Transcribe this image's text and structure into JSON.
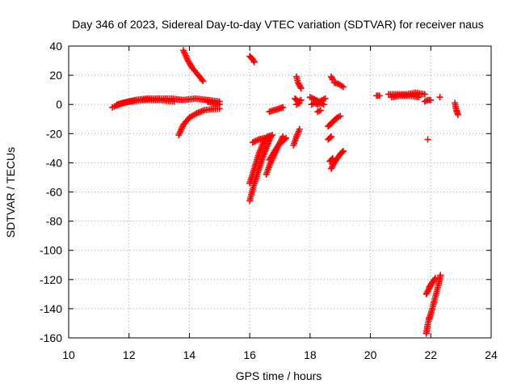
{
  "chart_data": {
    "type": "scatter",
    "title": "Day 346 of 2023, Sidereal Day-to-day VTEC variation (SDTVAR) for receiver naus",
    "xlabel": "GPS time / hours",
    "ylabel": "SDTVAR / TECUs",
    "xlim": [
      10,
      24
    ],
    "ylim": [
      -160,
      40
    ],
    "xticks": [
      10,
      12,
      14,
      16,
      18,
      20,
      22,
      24
    ],
    "yticks": [
      -160,
      -140,
      -120,
      -100,
      -80,
      -60,
      -40,
      -20,
      0,
      20,
      40
    ],
    "grid": true,
    "marker": "plus",
    "color": "#ff0000",
    "segments": [
      {
        "x": [
          11.45,
          11.8,
          12.2,
          12.6,
          13.0,
          13.4,
          13.8,
          14.2,
          14.6,
          15.0
        ],
        "y": [
          -2,
          1,
          3,
          4,
          4,
          4,
          3,
          4,
          3,
          2
        ]
      },
      {
        "x": [
          11.6,
          12.0,
          12.5,
          13.0,
          13.5
        ],
        "y": [
          0,
          2,
          3,
          3,
          2
        ]
      },
      {
        "x": [
          13.8,
          13.95,
          14.1,
          14.3,
          14.45
        ],
        "y": [
          37,
          30,
          25,
          20,
          16
        ]
      },
      {
        "x": [
          13.65,
          13.8,
          14.0,
          14.25,
          14.5,
          14.8,
          15.0
        ],
        "y": [
          -21,
          -14,
          -9,
          -6,
          -4,
          -3,
          -3
        ]
      },
      {
        "x": [
          14.6,
          14.8,
          15.0
        ],
        "y": [
          2,
          1,
          0
        ]
      },
      {
        "x": [
          16.0,
          16.1,
          16.15
        ],
        "y": [
          33,
          31,
          29
        ]
      },
      {
        "x": [
          16.0,
          16.1,
          16.25,
          16.4,
          16.55,
          16.7
        ],
        "y": [
          -66,
          -58,
          -48,
          -38,
          -30,
          -22
        ]
      },
      {
        "x": [
          16.0,
          16.15,
          16.3,
          16.45,
          16.6,
          16.75
        ],
        "y": [
          -54,
          -44,
          -34,
          -26,
          -22,
          -21
        ]
      },
      {
        "x": [
          16.1,
          16.3,
          16.5,
          16.7
        ],
        "y": [
          -26,
          -24,
          -23,
          -22
        ]
      },
      {
        "x": [
          16.55,
          16.65,
          16.8,
          16.95,
          17.1
        ],
        "y": [
          -48,
          -42,
          -35,
          -28,
          -22
        ]
      },
      {
        "x": [
          16.65,
          16.8,
          16.95,
          17.1,
          17.2
        ],
        "y": [
          -38,
          -33,
          -28,
          -25,
          -23
        ]
      },
      {
        "x": [
          16.65,
          16.8,
          16.95,
          17.1
        ],
        "y": [
          -5,
          -4,
          -3,
          -2
        ]
      },
      {
        "x": [
          17.45,
          17.55,
          17.65
        ],
        "y": [
          -28,
          -22,
          -17
        ]
      },
      {
        "x": [
          17.55,
          17.6,
          17.7
        ],
        "y": [
          19,
          15,
          11
        ]
      },
      {
        "x": [
          17.5,
          17.6,
          17.7
        ],
        "y": [
          4,
          2,
          3
        ]
      },
      {
        "x": [
          17.55,
          17.65
        ],
        "y": [
          0,
          1
        ]
      },
      {
        "x": [
          18.0,
          18.1,
          18.2,
          18.3,
          18.4,
          18.5
        ],
        "y": [
          5,
          4,
          3,
          2,
          3,
          4
        ]
      },
      {
        "x": [
          18.05,
          18.15,
          18.25,
          18.35,
          18.45
        ],
        "y": [
          0,
          1,
          0,
          1,
          0
        ]
      },
      {
        "x": [
          18.25,
          18.35
        ],
        "y": [
          -5,
          -4
        ]
      },
      {
        "x": [
          18.6,
          18.7,
          18.8,
          18.9,
          19.0
        ],
        "y": [
          -15,
          -13,
          -11,
          -9,
          -8
        ]
      },
      {
        "x": [
          18.6,
          18.7
        ],
        "y": [
          -24,
          -22
        ]
      },
      {
        "x": [
          18.65,
          18.75
        ],
        "y": [
          -39,
          -37
        ]
      },
      {
        "x": [
          18.7,
          18.8,
          18.9,
          19.0,
          19.1
        ],
        "y": [
          -44,
          -40,
          -37,
          -34,
          -32
        ]
      },
      {
        "x": [
          18.7,
          18.75
        ],
        "y": [
          19,
          17
        ]
      },
      {
        "x": [
          18.8,
          18.95,
          19.1
        ],
        "y": [
          15,
          14,
          12
        ]
      },
      {
        "x": [
          20.2,
          20.3
        ],
        "y": [
          6,
          6
        ]
      },
      {
        "x": [
          20.6,
          20.9,
          21.2,
          21.5,
          21.8
        ],
        "y": [
          7,
          7,
          7,
          8,
          7
        ]
      },
      {
        "x": [
          20.7,
          21.0,
          21.3,
          21.6
        ],
        "y": [
          5,
          6,
          6,
          5
        ]
      },
      {
        "x": [
          21.9
        ],
        "y": [
          -24
        ]
      },
      {
        "x": [
          21.8,
          21.9,
          22.0
        ],
        "y": [
          2,
          3,
          3
        ]
      },
      {
        "x": [
          22.3
        ],
        "y": [
          5
        ]
      },
      {
        "x": [
          22.8,
          22.85,
          22.9
        ],
        "y": [
          1,
          -4,
          -7
        ]
      },
      {
        "x": [
          21.85,
          21.95,
          22.05,
          22.15
        ],
        "y": [
          -130,
          -126,
          -122,
          -119
        ]
      },
      {
        "x": [
          21.85,
          21.9,
          21.95
        ],
        "y": [
          -157,
          -151,
          -146
        ]
      },
      {
        "x": [
          21.95,
          22.05,
          22.15,
          22.25,
          22.32
        ],
        "y": [
          -147,
          -140,
          -132,
          -124,
          -117
        ]
      },
      {
        "x": [
          21.95,
          22.05
        ],
        "y": [
          -125,
          -122
        ]
      }
    ]
  }
}
